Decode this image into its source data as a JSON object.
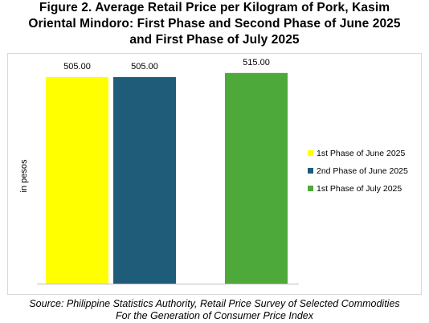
{
  "title": {
    "line1": "Figure 2. Average Retail Price per Kilogram of Pork, Kasim",
    "line2": "Oriental Mindoro: First Phase and Second Phase of June 2025",
    "line3": "and First Phase of July 2025"
  },
  "source": {
    "line1": "Source: Philippine Statistics Authority, Retail Price Survey of Selected Commodities",
    "line2": "For the Generation of Consumer Price Index"
  },
  "chart_data": {
    "type": "bar",
    "ylabel": "in pesos",
    "ylim": [
      0,
      550
    ],
    "grid": false,
    "legend_position": "right",
    "series": [
      {
        "name": "1st Phase of June 2025",
        "value": 505.0,
        "label": "505.00",
        "color": "#ffff00"
      },
      {
        "name": "2nd Phase of June 2025",
        "value": 505.0,
        "label": "505.00",
        "color": "#1f5c7a"
      },
      {
        "name": "1st Phase of July 2025",
        "value": 515.0,
        "label": "515.00",
        "color": "#4ea93b"
      }
    ]
  }
}
